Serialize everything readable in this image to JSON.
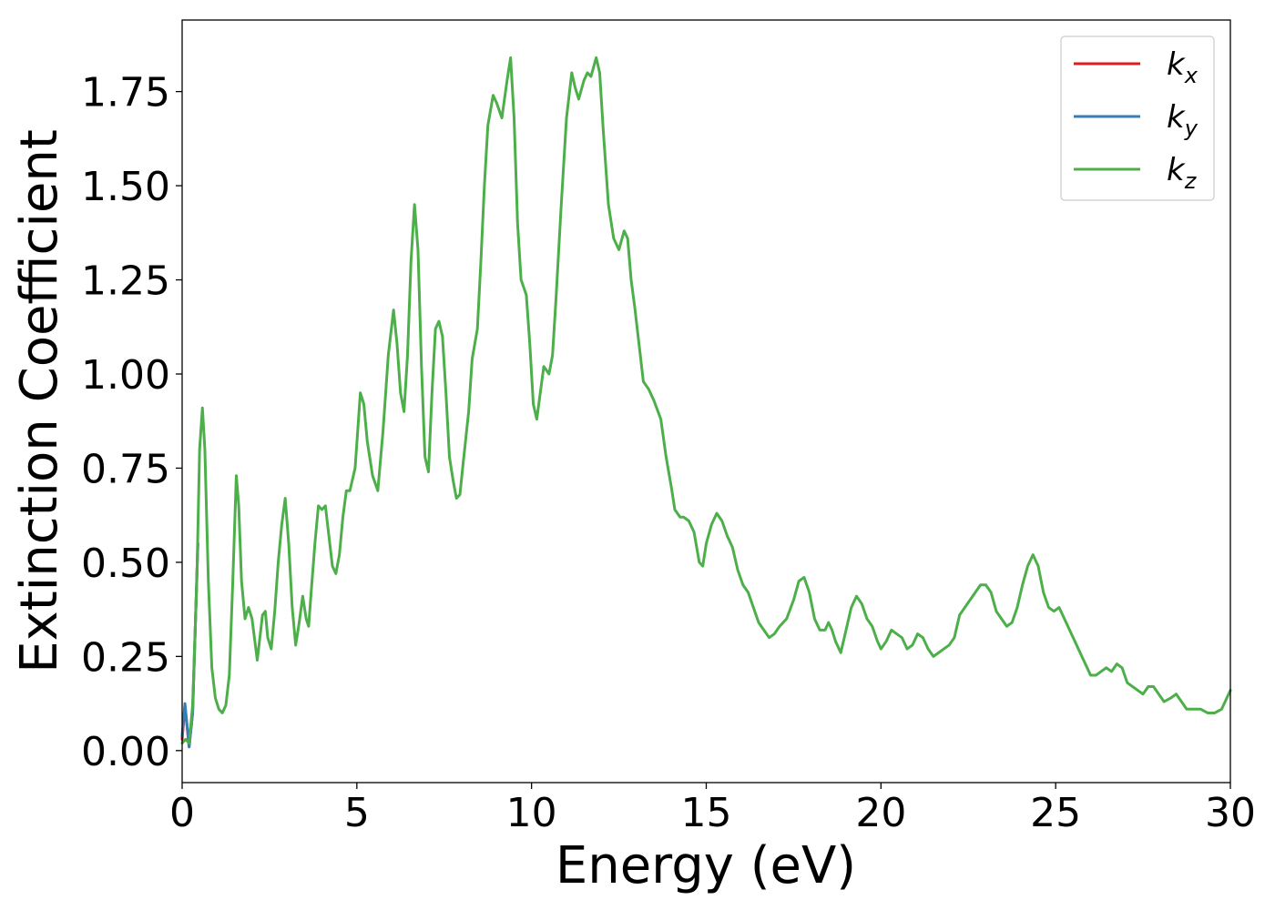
{
  "chart_data": {
    "type": "line",
    "xlabel": "Energy (eV)",
    "ylabel": "Extinction Coefficient",
    "xlim": [
      0,
      30
    ],
    "ylim": [
      -0.085,
      1.94
    ],
    "xticks": [
      0,
      5,
      10,
      15,
      20,
      25,
      30
    ],
    "yticks": [
      0.0,
      0.25,
      0.5,
      0.75,
      1.0,
      1.25,
      1.5,
      1.75
    ],
    "xtick_labels": [
      "0",
      "5",
      "10",
      "15",
      "20",
      "25",
      "30"
    ],
    "ytick_labels": [
      "0.00",
      "0.25",
      "0.50",
      "0.75",
      "1.00",
      "1.25",
      "1.50",
      "1.75"
    ],
    "grid": false,
    "legend_position": "top-right",
    "legend": [
      {
        "base": "k",
        "sub": "x",
        "color": "#e41a1c"
      },
      {
        "base": "k",
        "sub": "y",
        "color": "#377eb8"
      },
      {
        "base": "k",
        "sub": "z",
        "color": "#4daf4a"
      }
    ],
    "series": [
      {
        "color": "#e41a1c",
        "points": [
          [
            0.0,
            0.03
          ],
          [
            0.08,
            0.12
          ],
          [
            0.2,
            0.01
          ],
          [
            0.3,
            0.1
          ],
          [
            0.45,
            0.55
          ]
        ]
      },
      {
        "color": "#377eb8",
        "points": [
          [
            0.0,
            0.04
          ],
          [
            0.08,
            0.125
          ],
          [
            0.2,
            0.01
          ],
          [
            0.3,
            0.1
          ],
          [
            0.45,
            0.55
          ]
        ]
      },
      {
        "color": "#4daf4a",
        "points": [
          [
            0.0,
            0.02
          ],
          [
            0.1,
            0.03
          ],
          [
            0.2,
            0.02
          ],
          [
            0.3,
            0.12
          ],
          [
            0.42,
            0.45
          ],
          [
            0.5,
            0.8
          ],
          [
            0.58,
            0.91
          ],
          [
            0.65,
            0.8
          ],
          [
            0.75,
            0.45
          ],
          [
            0.85,
            0.22
          ],
          [
            0.95,
            0.14
          ],
          [
            1.05,
            0.11
          ],
          [
            1.15,
            0.1
          ],
          [
            1.25,
            0.12
          ],
          [
            1.35,
            0.2
          ],
          [
            1.45,
            0.45
          ],
          [
            1.55,
            0.73
          ],
          [
            1.62,
            0.65
          ],
          [
            1.7,
            0.45
          ],
          [
            1.8,
            0.35
          ],
          [
            1.9,
            0.38
          ],
          [
            2.0,
            0.35
          ],
          [
            2.15,
            0.24
          ],
          [
            2.3,
            0.36
          ],
          [
            2.38,
            0.37
          ],
          [
            2.45,
            0.3
          ],
          [
            2.55,
            0.27
          ],
          [
            2.65,
            0.37
          ],
          [
            2.75,
            0.5
          ],
          [
            2.85,
            0.6
          ],
          [
            2.95,
            0.67
          ],
          [
            3.05,
            0.55
          ],
          [
            3.15,
            0.38
          ],
          [
            3.25,
            0.28
          ],
          [
            3.35,
            0.34
          ],
          [
            3.45,
            0.41
          ],
          [
            3.55,
            0.35
          ],
          [
            3.62,
            0.33
          ],
          [
            3.7,
            0.43
          ],
          [
            3.8,
            0.55
          ],
          [
            3.9,
            0.65
          ],
          [
            4.0,
            0.64
          ],
          [
            4.1,
            0.65
          ],
          [
            4.2,
            0.57
          ],
          [
            4.3,
            0.49
          ],
          [
            4.4,
            0.47
          ],
          [
            4.5,
            0.52
          ],
          [
            4.6,
            0.62
          ],
          [
            4.7,
            0.69
          ],
          [
            4.8,
            0.69
          ],
          [
            4.95,
            0.75
          ],
          [
            5.1,
            0.95
          ],
          [
            5.2,
            0.92
          ],
          [
            5.3,
            0.82
          ],
          [
            5.45,
            0.73
          ],
          [
            5.6,
            0.69
          ],
          [
            5.75,
            0.85
          ],
          [
            5.9,
            1.05
          ],
          [
            6.05,
            1.17
          ],
          [
            6.15,
            1.08
          ],
          [
            6.25,
            0.95
          ],
          [
            6.35,
            0.9
          ],
          [
            6.45,
            1.05
          ],
          [
            6.55,
            1.3
          ],
          [
            6.65,
            1.45
          ],
          [
            6.75,
            1.33
          ],
          [
            6.85,
            1.02
          ],
          [
            6.95,
            0.78
          ],
          [
            7.05,
            0.74
          ],
          [
            7.15,
            0.95
          ],
          [
            7.25,
            1.12
          ],
          [
            7.35,
            1.14
          ],
          [
            7.45,
            1.1
          ],
          [
            7.55,
            0.95
          ],
          [
            7.65,
            0.78
          ],
          [
            7.75,
            0.72
          ],
          [
            7.85,
            0.67
          ],
          [
            7.95,
            0.68
          ],
          [
            8.05,
            0.77
          ],
          [
            8.2,
            0.9
          ],
          [
            8.3,
            1.04
          ],
          [
            8.45,
            1.12
          ],
          [
            8.55,
            1.3
          ],
          [
            8.65,
            1.5
          ],
          [
            8.75,
            1.66
          ],
          [
            8.9,
            1.74
          ],
          [
            9.0,
            1.72
          ],
          [
            9.15,
            1.68
          ],
          [
            9.3,
            1.78
          ],
          [
            9.4,
            1.84
          ],
          [
            9.5,
            1.68
          ],
          [
            9.6,
            1.4
          ],
          [
            9.7,
            1.25
          ],
          [
            9.85,
            1.21
          ],
          [
            9.95,
            1.08
          ],
          [
            10.05,
            0.92
          ],
          [
            10.15,
            0.88
          ],
          [
            10.25,
            0.95
          ],
          [
            10.35,
            1.02
          ],
          [
            10.5,
            1.0
          ],
          [
            10.6,
            1.05
          ],
          [
            10.7,
            1.2
          ],
          [
            10.85,
            1.45
          ],
          [
            11.0,
            1.68
          ],
          [
            11.15,
            1.8
          ],
          [
            11.25,
            1.76
          ],
          [
            11.35,
            1.73
          ],
          [
            11.5,
            1.78
          ],
          [
            11.6,
            1.8
          ],
          [
            11.7,
            1.79
          ],
          [
            11.85,
            1.84
          ],
          [
            11.95,
            1.8
          ],
          [
            12.05,
            1.65
          ],
          [
            12.2,
            1.45
          ],
          [
            12.35,
            1.36
          ],
          [
            12.5,
            1.33
          ],
          [
            12.65,
            1.38
          ],
          [
            12.75,
            1.36
          ],
          [
            12.85,
            1.25
          ],
          [
            12.95,
            1.18
          ],
          [
            13.05,
            1.1
          ],
          [
            13.2,
            0.98
          ],
          [
            13.35,
            0.96
          ],
          [
            13.5,
            0.93
          ],
          [
            13.7,
            0.88
          ],
          [
            13.85,
            0.78
          ],
          [
            14.0,
            0.7
          ],
          [
            14.1,
            0.64
          ],
          [
            14.25,
            0.62
          ],
          [
            14.35,
            0.62
          ],
          [
            14.5,
            0.61
          ],
          [
            14.65,
            0.58
          ],
          [
            14.8,
            0.5
          ],
          [
            14.9,
            0.49
          ],
          [
            15.0,
            0.55
          ],
          [
            15.15,
            0.6
          ],
          [
            15.3,
            0.63
          ],
          [
            15.45,
            0.61
          ],
          [
            15.6,
            0.57
          ],
          [
            15.75,
            0.54
          ],
          [
            15.9,
            0.48
          ],
          [
            16.05,
            0.44
          ],
          [
            16.2,
            0.42
          ],
          [
            16.35,
            0.38
          ],
          [
            16.5,
            0.34
          ],
          [
            16.65,
            0.32
          ],
          [
            16.8,
            0.3
          ],
          [
            16.95,
            0.31
          ],
          [
            17.1,
            0.33
          ],
          [
            17.3,
            0.35
          ],
          [
            17.5,
            0.4
          ],
          [
            17.65,
            0.45
          ],
          [
            17.8,
            0.46
          ],
          [
            17.95,
            0.42
          ],
          [
            18.1,
            0.35
          ],
          [
            18.25,
            0.32
          ],
          [
            18.4,
            0.32
          ],
          [
            18.5,
            0.34
          ],
          [
            18.6,
            0.32
          ],
          [
            18.7,
            0.29
          ],
          [
            18.85,
            0.26
          ],
          [
            19.0,
            0.32
          ],
          [
            19.15,
            0.38
          ],
          [
            19.3,
            0.41
          ],
          [
            19.45,
            0.39
          ],
          [
            19.6,
            0.35
          ],
          [
            19.75,
            0.33
          ],
          [
            19.9,
            0.29
          ],
          [
            20.0,
            0.27
          ],
          [
            20.15,
            0.29
          ],
          [
            20.3,
            0.32
          ],
          [
            20.45,
            0.31
          ],
          [
            20.6,
            0.3
          ],
          [
            20.75,
            0.27
          ],
          [
            20.9,
            0.28
          ],
          [
            21.05,
            0.31
          ],
          [
            21.2,
            0.3
          ],
          [
            21.35,
            0.27
          ],
          [
            21.5,
            0.25
          ],
          [
            21.65,
            0.26
          ],
          [
            21.8,
            0.27
          ],
          [
            21.95,
            0.28
          ],
          [
            22.1,
            0.3
          ],
          [
            22.25,
            0.36
          ],
          [
            22.4,
            0.38
          ],
          [
            22.55,
            0.4
          ],
          [
            22.7,
            0.42
          ],
          [
            22.85,
            0.44
          ],
          [
            23.0,
            0.44
          ],
          [
            23.15,
            0.42
          ],
          [
            23.3,
            0.37
          ],
          [
            23.45,
            0.35
          ],
          [
            23.6,
            0.33
          ],
          [
            23.75,
            0.34
          ],
          [
            23.9,
            0.38
          ],
          [
            24.05,
            0.44
          ],
          [
            24.2,
            0.49
          ],
          [
            24.35,
            0.52
          ],
          [
            24.5,
            0.49
          ],
          [
            24.65,
            0.42
          ],
          [
            24.8,
            0.38
          ],
          [
            24.95,
            0.37
          ],
          [
            25.1,
            0.38
          ],
          [
            25.25,
            0.35
          ],
          [
            25.4,
            0.32
          ],
          [
            25.55,
            0.29
          ],
          [
            25.7,
            0.26
          ],
          [
            25.85,
            0.23
          ],
          [
            26.0,
            0.2
          ],
          [
            26.15,
            0.2
          ],
          [
            26.3,
            0.21
          ],
          [
            26.45,
            0.22
          ],
          [
            26.6,
            0.21
          ],
          [
            26.75,
            0.23
          ],
          [
            26.9,
            0.22
          ],
          [
            27.05,
            0.18
          ],
          [
            27.2,
            0.17
          ],
          [
            27.35,
            0.16
          ],
          [
            27.5,
            0.15
          ],
          [
            27.65,
            0.17
          ],
          [
            27.8,
            0.17
          ],
          [
            27.95,
            0.15
          ],
          [
            28.1,
            0.13
          ],
          [
            28.3,
            0.14
          ],
          [
            28.45,
            0.15
          ],
          [
            28.6,
            0.13
          ],
          [
            28.75,
            0.11
          ],
          [
            28.95,
            0.11
          ],
          [
            29.15,
            0.11
          ],
          [
            29.35,
            0.1
          ],
          [
            29.55,
            0.1
          ],
          [
            29.75,
            0.11
          ],
          [
            29.9,
            0.14
          ],
          [
            30.0,
            0.16
          ]
        ]
      }
    ]
  }
}
